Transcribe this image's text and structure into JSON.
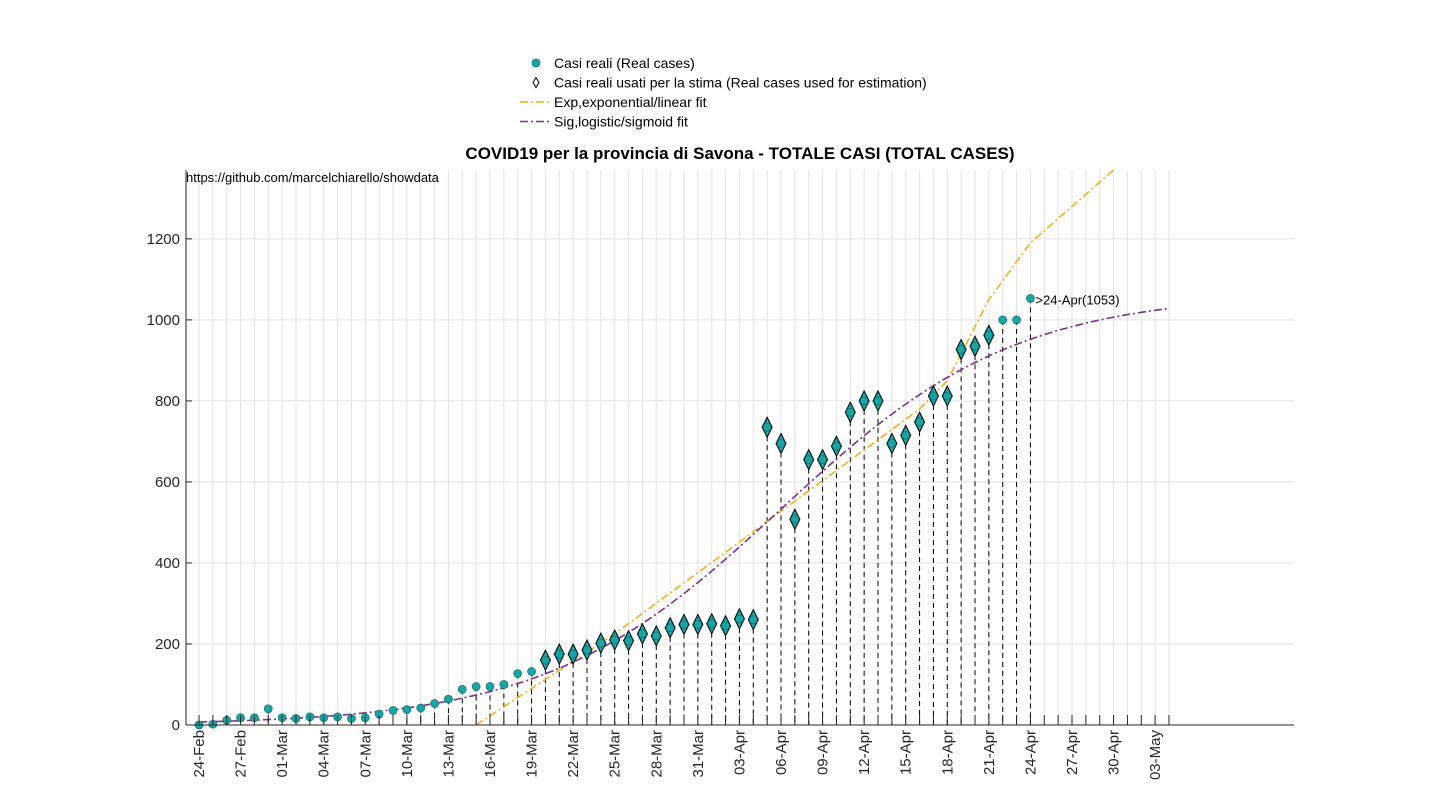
{
  "chart_data": {
    "type": "scatter",
    "title": "COVID19 per la provincia di Savona - TOTALE CASI (TOTAL CASES)",
    "source_text": "https://github.com/marcelchiarello/showdata",
    "xlabel": "",
    "ylabel": "",
    "ylim": [
      0,
      1370
    ],
    "yticks": [
      0,
      200,
      400,
      600,
      800,
      1000,
      1200
    ],
    "x_dates_range": [
      "24-Feb",
      "03-May"
    ],
    "xtick_labels": [
      "24-Feb",
      "27-Feb",
      "01-Mar",
      "04-Mar",
      "07-Mar",
      "10-Mar",
      "13-Mar",
      "16-Mar",
      "19-Mar",
      "22-Mar",
      "25-Mar",
      "28-Mar",
      "31-Mar",
      "03-Apr",
      "06-Apr",
      "09-Apr",
      "12-Apr",
      "15-Apr",
      "18-Apr",
      "21-Apr",
      "24-Apr",
      "27-Apr",
      "30-Apr",
      "03-May"
    ],
    "grid": true,
    "legend_position": "top",
    "legend": [
      {
        "label": "Casi reali (Real cases)",
        "marker": "circle",
        "color": "#1aa5a5"
      },
      {
        "label": "Casi reali usati per la stima (Real cases used for estimation)",
        "marker": "diamond",
        "color": "#000000"
      },
      {
        "label": "Exp,exponential/linear fit",
        "style": "dashdot",
        "color": "#edb120"
      },
      {
        "label": "Sig,logistic/sigmoid fit",
        "style": "dashdot",
        "color": "#7e2f8e"
      }
    ],
    "series": [
      {
        "name": "Casi reali (Real cases)",
        "color": "#1aa5a5",
        "points": [
          [
            "24-Feb",
            0
          ],
          [
            "25-Feb",
            2
          ],
          [
            "26-Feb",
            12
          ],
          [
            "27-Feb",
            18
          ],
          [
            "28-Feb",
            18
          ],
          [
            "29-Feb",
            40
          ],
          [
            "01-Mar",
            18
          ],
          [
            "02-Mar",
            16
          ],
          [
            "03-Mar",
            20
          ],
          [
            "04-Mar",
            18
          ],
          [
            "05-Mar",
            20
          ],
          [
            "06-Mar",
            16
          ],
          [
            "07-Mar",
            18
          ],
          [
            "08-Mar",
            27
          ],
          [
            "09-Mar",
            36
          ],
          [
            "10-Mar",
            38
          ],
          [
            "11-Mar",
            42
          ],
          [
            "12-Mar",
            53
          ],
          [
            "13-Mar",
            64
          ],
          [
            "14-Mar",
            88
          ],
          [
            "15-Mar",
            95
          ],
          [
            "16-Mar",
            95
          ],
          [
            "17-Mar",
            100
          ],
          [
            "18-Mar",
            127
          ],
          [
            "19-Mar",
            132
          ],
          [
            "20-Mar",
            160
          ],
          [
            "21-Mar",
            175
          ],
          [
            "22-Mar",
            175
          ],
          [
            "23-Mar",
            185
          ],
          [
            "24-Mar",
            202
          ],
          [
            "25-Mar",
            210
          ],
          [
            "26-Mar",
            208
          ],
          [
            "27-Mar",
            225
          ],
          [
            "28-Mar",
            220
          ],
          [
            "29-Mar",
            240
          ],
          [
            "30-Mar",
            248
          ],
          [
            "31-Mar",
            248
          ],
          [
            "01-Apr",
            250
          ],
          [
            "02-Apr",
            245
          ],
          [
            "03-Apr",
            262
          ],
          [
            "04-Apr",
            260
          ],
          [
            "05-Apr",
            735
          ],
          [
            "06-Apr",
            695
          ],
          [
            "07-Apr",
            508
          ],
          [
            "08-Apr",
            655
          ],
          [
            "09-Apr",
            655
          ],
          [
            "10-Apr",
            688
          ],
          [
            "11-Apr",
            772
          ],
          [
            "12-Apr",
            800
          ],
          [
            "13-Apr",
            800
          ],
          [
            "14-Apr",
            695
          ],
          [
            "15-Apr",
            715
          ],
          [
            "16-Apr",
            748
          ],
          [
            "17-Apr",
            812
          ],
          [
            "18-Apr",
            812
          ],
          [
            "19-Apr",
            927
          ],
          [
            "20-Apr",
            935
          ],
          [
            "21-Apr",
            962
          ],
          [
            "22-Apr",
            1000
          ],
          [
            "23-Apr",
            1000
          ],
          [
            "24-Apr",
            1053
          ]
        ]
      },
      {
        "name": "Casi reali usati per la stima (Real cases used for estimation)",
        "color": "#000000",
        "marker": "diamond",
        "range": [
          "20-Mar",
          "21-Apr"
        ]
      },
      {
        "name": "Exp,exponential/linear fit",
        "color": "#edb120",
        "model": "quadratic",
        "points": [
          [
            "15-Mar",
            0
          ],
          [
            "25-Mar",
            225
          ],
          [
            "04-Apr",
            477
          ],
          [
            "16-Apr",
            780
          ],
          [
            "18-Apr",
            850
          ],
          [
            "21-Apr",
            1050
          ],
          [
            "24-Apr",
            1190
          ],
          [
            "30-Apr",
            1370
          ]
        ]
      },
      {
        "name": "Sig,logistic/sigmoid fit",
        "color": "#7e2f8e",
        "model": "logistic",
        "params": {
          "K": 1066,
          "r": 0.118,
          "t0": "06-Apr"
        },
        "range": [
          "24-Feb",
          "04-May"
        ]
      }
    ],
    "annotations": [
      {
        "text": ">24-Apr(1053)",
        "x": "24-Apr",
        "y": 1053
      }
    ]
  }
}
